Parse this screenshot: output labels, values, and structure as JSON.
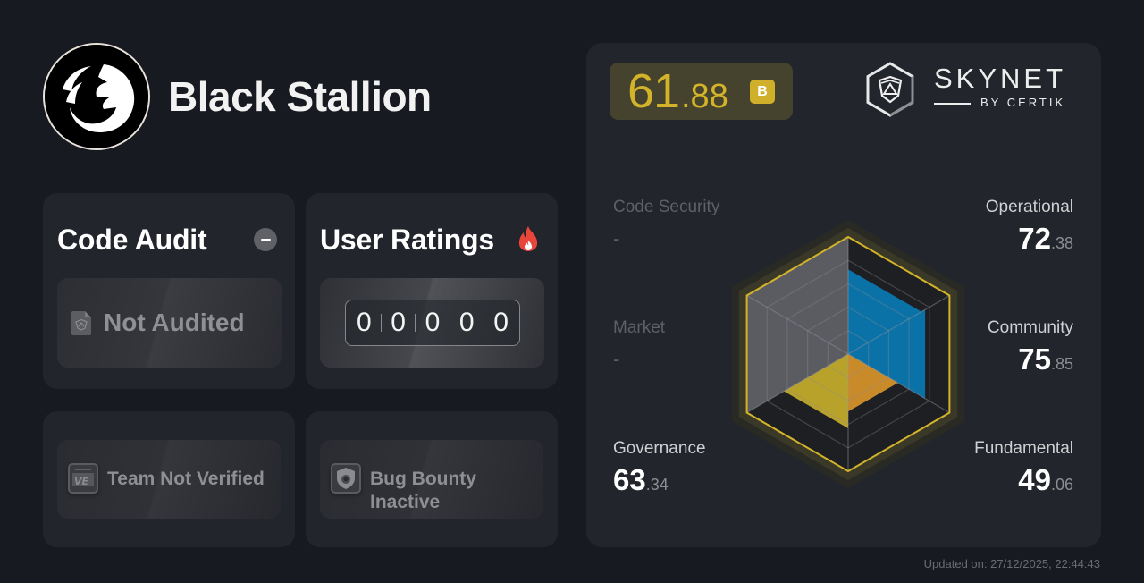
{
  "project": {
    "name": "Black Stallion",
    "logo_icon": "horse-head-logo-icon"
  },
  "cards": {
    "code_audit": {
      "title": "Code Audit",
      "status_icon": "minus-circle-icon",
      "status_label": "Not Audited",
      "status_icon_name": "audit-document-icon"
    },
    "user_ratings": {
      "title": "User Ratings",
      "title_icon": "fire-icon",
      "digits": [
        "0",
        "0",
        "0",
        "0",
        "0"
      ]
    },
    "team": {
      "label": "Team Not Verified",
      "icon": "id-card-icon"
    },
    "bug_bounty": {
      "label": "Bug Bounty Inactive",
      "icon": "shield-bug-icon"
    }
  },
  "score": {
    "integer": "61",
    "decimal": ".88",
    "grade": "B",
    "color": "#d3b32a",
    "pill_bg": "#45432d"
  },
  "brand": {
    "word": "SKYNET",
    "sub": "BY CERTIK",
    "icon": "skynet-hex-shield-icon"
  },
  "metrics": {
    "code_security": {
      "label": "Code Security",
      "value": "-"
    },
    "market": {
      "label": "Market",
      "value": "-"
    },
    "operational": {
      "label": "Operational",
      "int": "72",
      "dec": ".38"
    },
    "community": {
      "label": "Community",
      "int": "75",
      "dec": ".85"
    },
    "governance": {
      "label": "Governance",
      "int": "63",
      "dec": ".34"
    },
    "fundamental": {
      "label": "Fundamental",
      "int": "49",
      "dec": ".06"
    }
  },
  "chart_data": {
    "type": "radar",
    "title": "",
    "categories": [
      "Operational",
      "Community",
      "Fundamental",
      "Governance",
      "Market",
      "Code Security"
    ],
    "values": [
      72.38,
      75.85,
      49.06,
      63.34,
      null,
      null
    ],
    "colors": [
      "#0b72a8",
      "#0b72a8",
      "#c98a2a",
      "#b9a22a",
      "#5f6066",
      "#5f6066"
    ],
    "range": [
      0,
      100
    ],
    "grid_levels": [
      20,
      40,
      60,
      80,
      100
    ],
    "overall_score": 61.88,
    "grade": "B"
  },
  "footer": {
    "updated": "Updated on: 27/12/2025, 22:44:43"
  }
}
